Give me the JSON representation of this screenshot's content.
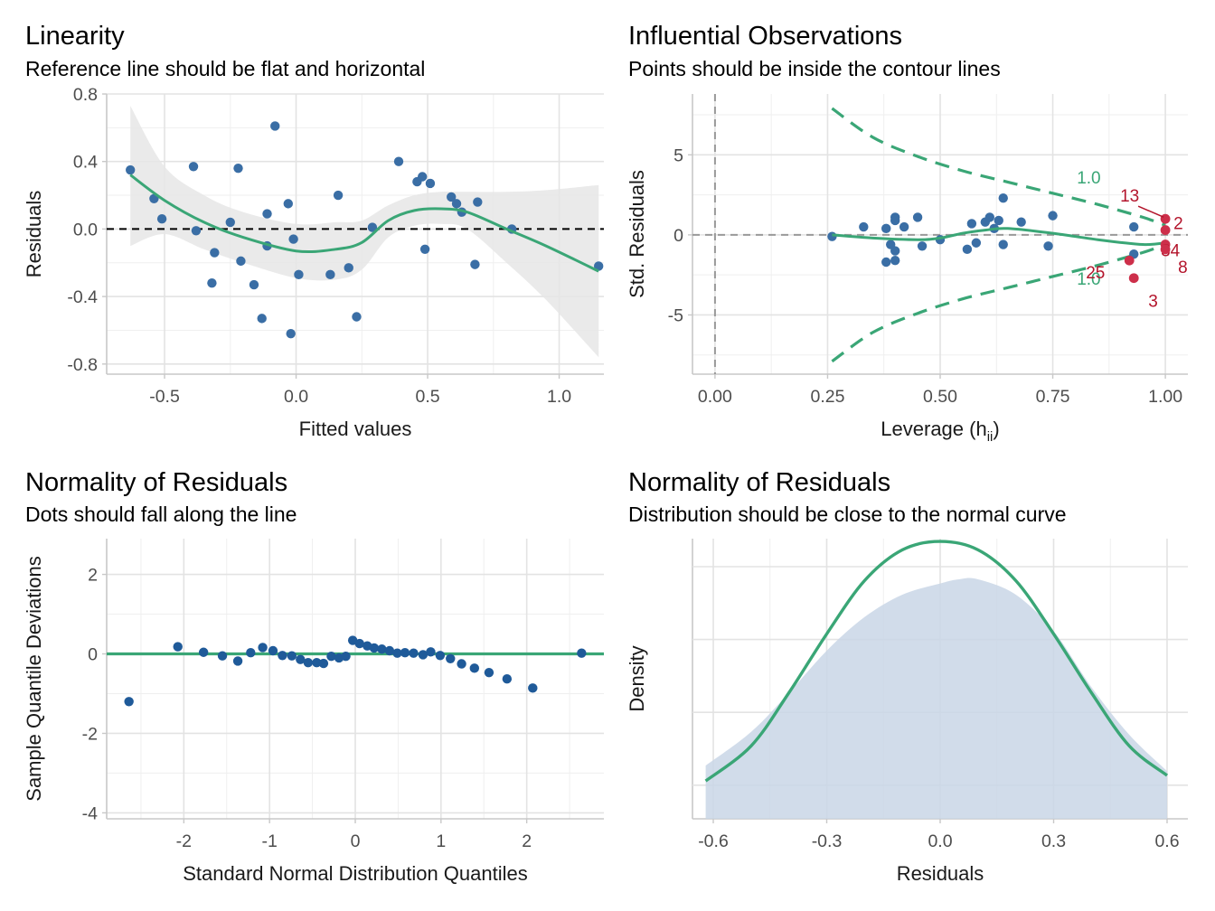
{
  "colors": {
    "point": "#3a6ea5",
    "point_dark": "#1f5a99",
    "curve": "#3aa676",
    "influential": "#cd2f4a",
    "band": "#e6e6e6",
    "density_fill": "#c9d6e6",
    "grid_major": "#e3e3e3",
    "grid_minor": "#efefef"
  },
  "panels": {
    "linearity": {
      "title": "Linearity",
      "subtitle": "Reference line should be flat and horizontal"
    },
    "influential": {
      "title": "Influential Observations",
      "subtitle": "Points should be inside the contour lines"
    },
    "qq": {
      "title": "Normality of Residuals",
      "subtitle": "Dots should fall along the line"
    },
    "density": {
      "title": "Normality of Residuals",
      "subtitle": "Distribution should be close to the normal curve"
    }
  },
  "chart_data": [
    {
      "id": "linearity",
      "type": "scatter",
      "title": "Linearity",
      "subtitle": "Reference line should be flat and horizontal",
      "xlabel": "Fitted values",
      "ylabel": "Residuals",
      "xlim": [
        -0.72,
        1.17
      ],
      "ylim": [
        -0.86,
        0.8
      ],
      "xticks": [
        -0.5,
        0.0,
        0.5,
        1.0
      ],
      "xtick_labels": [
        "-0.5",
        "0.0",
        "0.5",
        "1.0"
      ],
      "yticks": [
        -0.8,
        -0.4,
        0.0,
        0.4,
        0.8
      ],
      "ytick_labels": [
        "-0.8",
        "-0.4",
        "0.0",
        "0.4",
        "0.8"
      ],
      "reference_line": 0,
      "points": [
        [
          -0.63,
          0.35
        ],
        [
          -0.54,
          0.18
        ],
        [
          -0.51,
          0.06
        ],
        [
          -0.39,
          0.37
        ],
        [
          -0.38,
          -0.01
        ],
        [
          -0.32,
          -0.32
        ],
        [
          -0.31,
          -0.14
        ],
        [
          -0.25,
          0.04
        ],
        [
          -0.22,
          0.36
        ],
        [
          -0.21,
          -0.19
        ],
        [
          -0.16,
          -0.33
        ],
        [
          -0.13,
          -0.53
        ],
        [
          -0.11,
          -0.1
        ],
        [
          -0.11,
          0.09
        ],
        [
          -0.08,
          0.61
        ],
        [
          -0.03,
          0.15
        ],
        [
          -0.02,
          -0.62
        ],
        [
          -0.01,
          -0.06
        ],
        [
          0.01,
          -0.27
        ],
        [
          0.13,
          -0.27
        ],
        [
          0.16,
          0.2
        ],
        [
          0.2,
          -0.23
        ],
        [
          0.23,
          -0.52
        ],
        [
          0.29,
          0.01
        ],
        [
          0.39,
          0.4
        ],
        [
          0.46,
          0.28
        ],
        [
          0.48,
          0.31
        ],
        [
          0.49,
          -0.12
        ],
        [
          0.51,
          0.27
        ],
        [
          0.59,
          0.19
        ],
        [
          0.61,
          0.15
        ],
        [
          0.63,
          0.1
        ],
        [
          0.68,
          -0.21
        ],
        [
          0.69,
          0.16
        ],
        [
          0.82,
          0.0
        ],
        [
          1.15,
          -0.22
        ]
      ],
      "smooth_curve": [
        [
          -0.63,
          0.32
        ],
        [
          -0.5,
          0.17
        ],
        [
          -0.35,
          0.04
        ],
        [
          -0.2,
          -0.05
        ],
        [
          0.0,
          -0.13
        ],
        [
          0.15,
          -0.12
        ],
        [
          0.25,
          -0.08
        ],
        [
          0.35,
          0.05
        ],
        [
          0.45,
          0.11
        ],
        [
          0.55,
          0.12
        ],
        [
          0.65,
          0.1
        ],
        [
          0.8,
          0.0
        ],
        [
          0.95,
          -0.1
        ],
        [
          1.15,
          -0.25
        ]
      ],
      "confidence_band": {
        "upper": [
          [
            -0.63,
            0.73
          ],
          [
            -0.5,
            0.37
          ],
          [
            -0.35,
            0.2
          ],
          [
            -0.2,
            0.1
          ],
          [
            0.0,
            0.03
          ],
          [
            0.15,
            0.04
          ],
          [
            0.25,
            0.05
          ],
          [
            0.35,
            0.14
          ],
          [
            0.45,
            0.2
          ],
          [
            0.55,
            0.22
          ],
          [
            0.65,
            0.22
          ],
          [
            0.8,
            0.22
          ],
          [
            0.95,
            0.23
          ],
          [
            1.15,
            0.26
          ]
        ],
        "lower": [
          [
            -0.63,
            -0.1
          ],
          [
            -0.5,
            -0.03
          ],
          [
            -0.35,
            -0.12
          ],
          [
            -0.2,
            -0.2
          ],
          [
            0.0,
            -0.29
          ],
          [
            0.15,
            -0.3
          ],
          [
            0.25,
            -0.24
          ],
          [
            0.35,
            -0.05
          ],
          [
            0.45,
            0.02
          ],
          [
            0.55,
            0.03
          ],
          [
            0.65,
            0.0
          ],
          [
            0.8,
            -0.2
          ],
          [
            0.95,
            -0.42
          ],
          [
            1.15,
            -0.76
          ]
        ]
      }
    },
    {
      "id": "influential",
      "type": "scatter",
      "title": "Influential Observations",
      "subtitle": "Points should be inside the contour lines",
      "xlabel": "Leverage (h",
      "xlabel_sub": "ii",
      "xlabel_end": ")",
      "ylabel": "Std. Residuals",
      "xlim": [
        -0.05,
        1.05
      ],
      "ylim": [
        -8.7,
        8.8
      ],
      "xticks": [
        0.0,
        0.25,
        0.5,
        0.75,
        1.0
      ],
      "xtick_labels": [
        "0.00",
        "0.25",
        "0.50",
        "0.75",
        "1.00"
      ],
      "yticks": [
        -5,
        0,
        5
      ],
      "ytick_labels": [
        "-5",
        "0",
        "5"
      ],
      "contour_label": "1.0",
      "contour_upper": [
        [
          0.26,
          7.9
        ],
        [
          0.35,
          6.1
        ],
        [
          0.45,
          4.9
        ],
        [
          0.55,
          4.0
        ],
        [
          0.65,
          3.3
        ],
        [
          0.75,
          2.6
        ],
        [
          0.85,
          1.9
        ],
        [
          0.95,
          1.1
        ],
        [
          1.0,
          0.6
        ]
      ],
      "contour_lower": [
        [
          0.26,
          -7.9
        ],
        [
          0.35,
          -6.1
        ],
        [
          0.45,
          -4.9
        ],
        [
          0.55,
          -4.0
        ],
        [
          0.65,
          -3.3
        ],
        [
          0.75,
          -2.6
        ],
        [
          0.85,
          -1.9
        ],
        [
          0.95,
          -1.1
        ],
        [
          1.0,
          -0.6
        ]
      ],
      "smooth_curve": [
        [
          0.26,
          0.0
        ],
        [
          0.35,
          -0.2
        ],
        [
          0.45,
          -0.3
        ],
        [
          0.5,
          -0.2
        ],
        [
          0.55,
          0.1
        ],
        [
          0.6,
          0.3
        ],
        [
          0.65,
          0.4
        ],
        [
          0.75,
          0.1
        ],
        [
          0.85,
          -0.3
        ],
        [
          0.95,
          -0.6
        ],
        [
          1.0,
          -0.5
        ]
      ],
      "points": [
        [
          0.26,
          -0.1
        ],
        [
          0.33,
          0.5
        ],
        [
          0.38,
          0.4
        ],
        [
          0.38,
          -1.7
        ],
        [
          0.39,
          -0.6
        ],
        [
          0.4,
          1.1
        ],
        [
          0.4,
          0.9
        ],
        [
          0.4,
          -1.0
        ],
        [
          0.4,
          -1.6
        ],
        [
          0.42,
          0.5
        ],
        [
          0.45,
          1.1
        ],
        [
          0.46,
          -0.7
        ],
        [
          0.5,
          -0.3
        ],
        [
          0.56,
          -0.9
        ],
        [
          0.57,
          0.7
        ],
        [
          0.58,
          -0.5
        ],
        [
          0.6,
          0.8
        ],
        [
          0.61,
          1.1
        ],
        [
          0.62,
          0.4
        ],
        [
          0.63,
          0.9
        ],
        [
          0.64,
          2.3
        ],
        [
          0.64,
          -0.6
        ],
        [
          0.68,
          0.8
        ],
        [
          0.74,
          -0.7
        ],
        [
          0.75,
          1.2
        ],
        [
          0.93,
          0.5
        ],
        [
          0.93,
          -1.2
        ]
      ],
      "influential_points": [
        {
          "label": "13",
          "x": 1.0,
          "y": 1.0
        },
        {
          "label": "2",
          "x": 1.0,
          "y": 0.3
        },
        {
          "label": "34",
          "x": 1.0,
          "y": -0.6
        },
        {
          "label": "25",
          "x": 0.92,
          "y": -1.6
        },
        {
          "label": "8",
          "x": 1.0,
          "y": -0.9
        },
        {
          "label": "3",
          "x": 0.93,
          "y": -2.7
        }
      ]
    },
    {
      "id": "qq",
      "type": "scatter",
      "title": "Normality of Residuals",
      "subtitle": "Dots should fall along the line",
      "xlabel": "Standard Normal Distribution Quantiles",
      "ylabel": "Sample Quantile Deviations",
      "xlim": [
        -2.9,
        2.9
      ],
      "ylim": [
        -4.15,
        2.9
      ],
      "xticks": [
        -2,
        -1,
        0,
        1,
        2
      ],
      "xtick_labels": [
        "-2",
        "-1",
        "0",
        "1",
        "2"
      ],
      "yticks": [
        -4,
        -2,
        0,
        2
      ],
      "ytick_labels": [
        "-4",
        "-2",
        "0",
        "2"
      ],
      "reference_line": 0,
      "points": [
        [
          -2.64,
          -1.2
        ],
        [
          -2.07,
          0.18
        ],
        [
          -1.77,
          0.04
        ],
        [
          -1.55,
          -0.05
        ],
        [
          -1.37,
          -0.18
        ],
        [
          -1.22,
          0.03
        ],
        [
          -1.08,
          0.16
        ],
        [
          -0.96,
          0.08
        ],
        [
          -0.85,
          -0.04
        ],
        [
          -0.74,
          -0.05
        ],
        [
          -0.64,
          -0.14
        ],
        [
          -0.55,
          -0.22
        ],
        [
          -0.45,
          -0.22
        ],
        [
          -0.37,
          -0.24
        ],
        [
          -0.28,
          -0.06
        ],
        [
          -0.19,
          -0.1
        ],
        [
          -0.11,
          -0.06
        ],
        [
          -0.03,
          0.34
        ],
        [
          0.05,
          0.26
        ],
        [
          0.14,
          0.2
        ],
        [
          0.22,
          0.15
        ],
        [
          0.31,
          0.12
        ],
        [
          0.4,
          0.08
        ],
        [
          0.49,
          0.02
        ],
        [
          0.58,
          0.03
        ],
        [
          0.68,
          0.02
        ],
        [
          0.79,
          -0.02
        ],
        [
          0.88,
          0.05
        ],
        [
          0.99,
          -0.04
        ],
        [
          1.11,
          -0.12
        ],
        [
          1.24,
          -0.25
        ],
        [
          1.39,
          -0.36
        ],
        [
          1.56,
          -0.47
        ],
        [
          1.77,
          -0.63
        ],
        [
          2.07,
          -0.86
        ],
        [
          2.64,
          0.02
        ]
      ]
    },
    {
      "id": "density",
      "type": "area",
      "title": "Normality of Residuals",
      "subtitle": "Distribution should be close to the normal curve",
      "xlabel": "Residuals",
      "ylabel": "Density",
      "xlim": [
        -0.655,
        0.655
      ],
      "ylim": [
        0,
        1.0
      ],
      "xticks": [
        -0.6,
        -0.3,
        0.0,
        0.3,
        0.6
      ],
      "xtick_labels": [
        "-0.6",
        "-0.3",
        "0.0",
        "0.3",
        "0.6"
      ],
      "yticks": [],
      "empirical_density": [
        [
          -0.62,
          0.19
        ],
        [
          -0.5,
          0.31
        ],
        [
          -0.4,
          0.45
        ],
        [
          -0.3,
          0.6
        ],
        [
          -0.2,
          0.72
        ],
        [
          -0.1,
          0.8
        ],
        [
          0.0,
          0.84
        ],
        [
          0.05,
          0.855
        ],
        [
          0.1,
          0.855
        ],
        [
          0.2,
          0.8
        ],
        [
          0.3,
          0.67
        ],
        [
          0.4,
          0.47
        ],
        [
          0.5,
          0.3
        ],
        [
          0.6,
          0.17
        ]
      ],
      "normal_curve": [
        [
          -0.62,
          0.135
        ],
        [
          -0.5,
          0.26
        ],
        [
          -0.4,
          0.45
        ],
        [
          -0.3,
          0.66
        ],
        [
          -0.2,
          0.85
        ],
        [
          -0.1,
          0.96
        ],
        [
          0.0,
          0.99
        ],
        [
          0.1,
          0.96
        ],
        [
          0.2,
          0.85
        ],
        [
          0.3,
          0.66
        ],
        [
          0.4,
          0.45
        ],
        [
          0.5,
          0.26
        ],
        [
          0.6,
          0.155
        ]
      ]
    }
  ]
}
